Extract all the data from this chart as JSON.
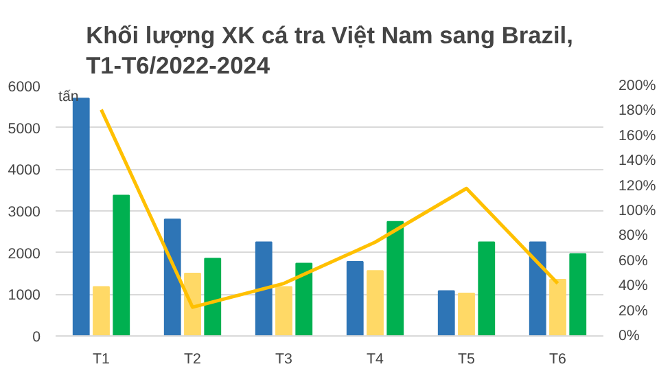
{
  "chart_data": {
    "type": "bar",
    "title": "Khối lượng XK cá tra Việt Nam sang Brazil,\nT1-T6/2022-2024",
    "ylabel": "tấn",
    "categories": [
      "T1",
      "T2",
      "T3",
      "T4",
      "T5",
      "T6"
    ],
    "series": [
      {
        "color": "#2e75b6",
        "values": [
          5700,
          2800,
          2250,
          1780,
          1080,
          2250
        ]
      },
      {
        "color": "#ffd966",
        "values": [
          1180,
          1500,
          1180,
          1560,
          1020,
          1350
        ]
      },
      {
        "color": "#00b050",
        "values": [
          3370,
          1860,
          1740,
          2740,
          2250,
          1970
        ]
      },
      {
        "type": "line",
        "axis": "y2",
        "color": "#ffc000",
        "values": [
          181,
          23,
          42,
          75,
          118,
          42
        ]
      }
    ],
    "ylim": [
      0,
      6000
    ],
    "yticks": [
      0,
      1000,
      2000,
      3000,
      4000,
      5000,
      6000
    ],
    "y2lim": [
      0,
      200
    ],
    "y2ticks": [
      {
        "value": 0,
        "label": "0%"
      },
      {
        "value": 20,
        "label": "20%"
      },
      {
        "value": 40,
        "label": "40%"
      },
      {
        "value": 60,
        "label": "60%"
      },
      {
        "value": 80,
        "label": "80%"
      },
      {
        "value": 100,
        "label": "100%"
      },
      {
        "value": 120,
        "label": "120%"
      },
      {
        "value": 140,
        "label": "140%"
      },
      {
        "value": 160,
        "label": "160%"
      },
      {
        "value": 180,
        "label": "180%"
      },
      {
        "value": 200,
        "label": "200%"
      }
    ],
    "grid": "y"
  }
}
